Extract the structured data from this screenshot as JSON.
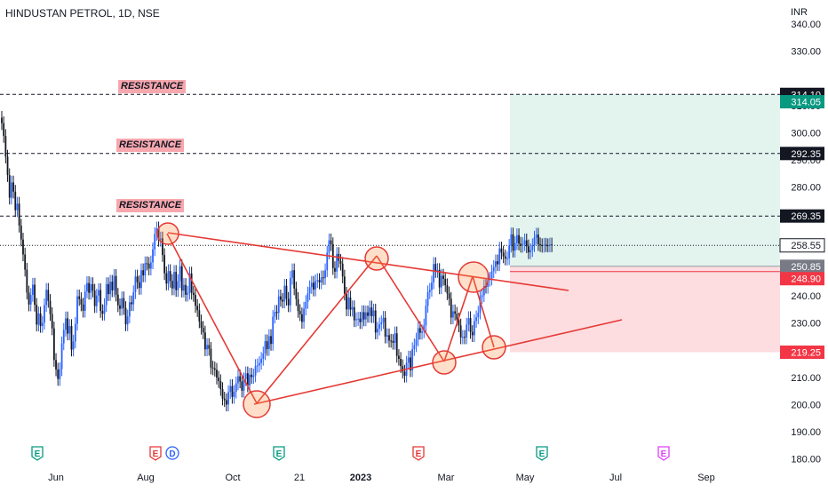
{
  "title": "HINDUSTAN PETROL, 1D, NSE",
  "currency": "INR",
  "resistance_label": "RESISTANCE",
  "colors": {
    "up": "#2962ff",
    "down": "#131722",
    "trendline": "#e53935",
    "target_zone": "#e3f4ef",
    "stop_zone": "#fddde0",
    "event_green": "#089981",
    "event_red": "#e53935",
    "event_blue": "#2962ff",
    "event_purple": "#e040fb"
  },
  "chart_data": {
    "type": "candlestick",
    "ylim": [
      177,
      343
    ],
    "y_ticks": [
      "340.00",
      "330.00",
      "310.00",
      "300.00",
      "290.00",
      "280.00",
      "240.00",
      "230.00",
      "210.00",
      "200.00",
      "190.00",
      "180.00"
    ],
    "x_ticks": [
      {
        "label": "Jun",
        "bold": false
      },
      {
        "label": "Aug",
        "bold": false
      },
      {
        "label": "Oct",
        "bold": false
      },
      {
        "label": "21",
        "bold": false
      },
      {
        "label": "2023",
        "bold": true
      },
      {
        "label": "Mar",
        "bold": false
      },
      {
        "label": "May",
        "bold": false
      },
      {
        "label": "Jul",
        "bold": false
      },
      {
        "label": "Sep",
        "bold": false
      }
    ],
    "price_labels": [
      {
        "value": "314.10",
        "price": 314.1,
        "bg": "#131722",
        "color": "#ffffff"
      },
      {
        "value": "314.05",
        "price": 311.4,
        "bg": "#089981",
        "color": "#ffffff"
      },
      {
        "value": "292.35",
        "price": 292.35,
        "bg": "#131722",
        "color": "#ffffff"
      },
      {
        "value": "269.35",
        "price": 269.35,
        "bg": "#131722",
        "color": "#ffffff"
      },
      {
        "value": "258.55",
        "price": 258.55,
        "bg": "#ffffff",
        "color": "#131722"
      },
      {
        "value": "250.85",
        "price": 250.85,
        "bg": "#787b86",
        "color": "#ffffff"
      },
      {
        "value": "248.90",
        "price": 246.3,
        "bg": "#f23645",
        "color": "#ffffff"
      },
      {
        "value": "219.25",
        "price": 219.25,
        "bg": "#f23645",
        "color": "#ffffff"
      }
    ],
    "resistance_levels": [
      314.1,
      292.35,
      269.35
    ],
    "current_price": 258.55,
    "entry_price": 250.85,
    "stop_price": 248.9,
    "stop_loss": 219.25,
    "target": 314.05,
    "candles_close": [
      303.5,
      298.8,
      291.2,
      284.4,
      276.1,
      281.7,
      278.3,
      271.5,
      273.9,
      265.8,
      260.7,
      255.2,
      249.6,
      241.2,
      236.8,
      240.3,
      244.1,
      236.7,
      229.4,
      233.5,
      228.9,
      230.1,
      236.6,
      242.2,
      238.1,
      233.3,
      228.0,
      216.4,
      212.9,
      209.4,
      213.0,
      222.5,
      227.5,
      231.7,
      226.1,
      228.9,
      220.2,
      223.2,
      229.7,
      239.8,
      238.8,
      236.8,
      234.5,
      241.6,
      244.7,
      241.1,
      244.3,
      241.9,
      236.2,
      240.1,
      242.1,
      234.4,
      233.4,
      236.6,
      244.3,
      240.6,
      245.2,
      242.0,
      247.3,
      240.4,
      236.5,
      235.2,
      239.1,
      235.5,
      229.5,
      232.4,
      237.6,
      236.9,
      241.3,
      247.1,
      245.0,
      242.9,
      249.4,
      247.5,
      252.0,
      251.8,
      250.0,
      252.3,
      257.1,
      262.7,
      264.8,
      260.6,
      261.1,
      255.0,
      248.3,
      244.5,
      249.1,
      245.5,
      242.7,
      248.8,
      242.1,
      245.4,
      250.9,
      241.9,
      244.0,
      240.4,
      241.1,
      248.2,
      241.1,
      240.3,
      236.3,
      234.7,
      230.6,
      228.2,
      226.5,
      220.3,
      221.9,
      220.5,
      213.6,
      213.3,
      212.8,
      209.9,
      208.6,
      205.7,
      202.2,
      201.6,
      200.0,
      204.6,
      206.8,
      202.8,
      204.7,
      207.8,
      210.4,
      208.5,
      205.1,
      209.3,
      211.5,
      207.0,
      211.0,
      210.1,
      210.7,
      214.2,
      214.4,
      215.3,
      216.8,
      218.8,
      223.3,
      220.4,
      225.2,
      222.3,
      232.3,
      234.1,
      233.7,
      239.8,
      238.5,
      237.9,
      243.7,
      238.9,
      236.5,
      246.6,
      249.4,
      242.7,
      238.8,
      234.4,
      233.2,
      230.4,
      235.3,
      237.7,
      240.9,
      243.2,
      244.8,
      242.3,
      245.4,
      245.8,
      244.9,
      246.8,
      246.5,
      249.4,
      255.9,
      260.4,
      259.0,
      250.2,
      248.9,
      255.4,
      252.8,
      251.8,
      247.1,
      240.8,
      235.0,
      239.4,
      234.9,
      235.8,
      231.0,
      231.4,
      231.6,
      230.3,
      234.0,
      231.3,
      233.9,
      232.6,
      235.7,
      232.5,
      234.6,
      226.5,
      227.9,
      229.5,
      230.3,
      231.9,
      225.0,
      225.5,
      223.5,
      223.4,
      222.7,
      226.2,
      217.9,
      216.8,
      214.1,
      212.1,
      210.6,
      215.4,
      217.3,
      212.6,
      220.4,
      221.8,
      223.9,
      228.1,
      226.4,
      226.9,
      229.1,
      236.3,
      241.3,
      242.2,
      244.9,
      251.7,
      249.1,
      249.5,
      243.1,
      247.4,
      246.2,
      243.9,
      240.9,
      238.9,
      232.0,
      234.3,
      233.4,
      231.3,
      229.1,
      224.7,
      224.9,
      224.7,
      229.4,
      231.8,
      226.7,
      225.5,
      230.7,
      232.1,
      233.8,
      239.6,
      240.2,
      243.6,
      243.3,
      245.9,
      246.3,
      249.0,
      250.6,
      252.7,
      251.6,
      257.4,
      255.9,
      254.5,
      253.7,
      253.8,
      258.4,
      262.6,
      256.6,
      259.4,
      262.3,
      259.2,
      258.4,
      259.0,
      260.4,
      258.2,
      256.0,
      256.8,
      258.6,
      261.4,
      262.5,
      259.0,
      258.6,
      258.4,
      258.8,
      258.6,
      258.5,
      258.9,
      258.55
    ],
    "trendlines": [
      {
        "from": [
          58,
          264.0
        ],
        "to": [
          195,
          258.5
        ],
        "label": ""
      },
      {
        "from": [
          16,
          264.0
        ],
        "to": [
          95,
          201.0
        ],
        "label": ""
      }
    ]
  }
}
